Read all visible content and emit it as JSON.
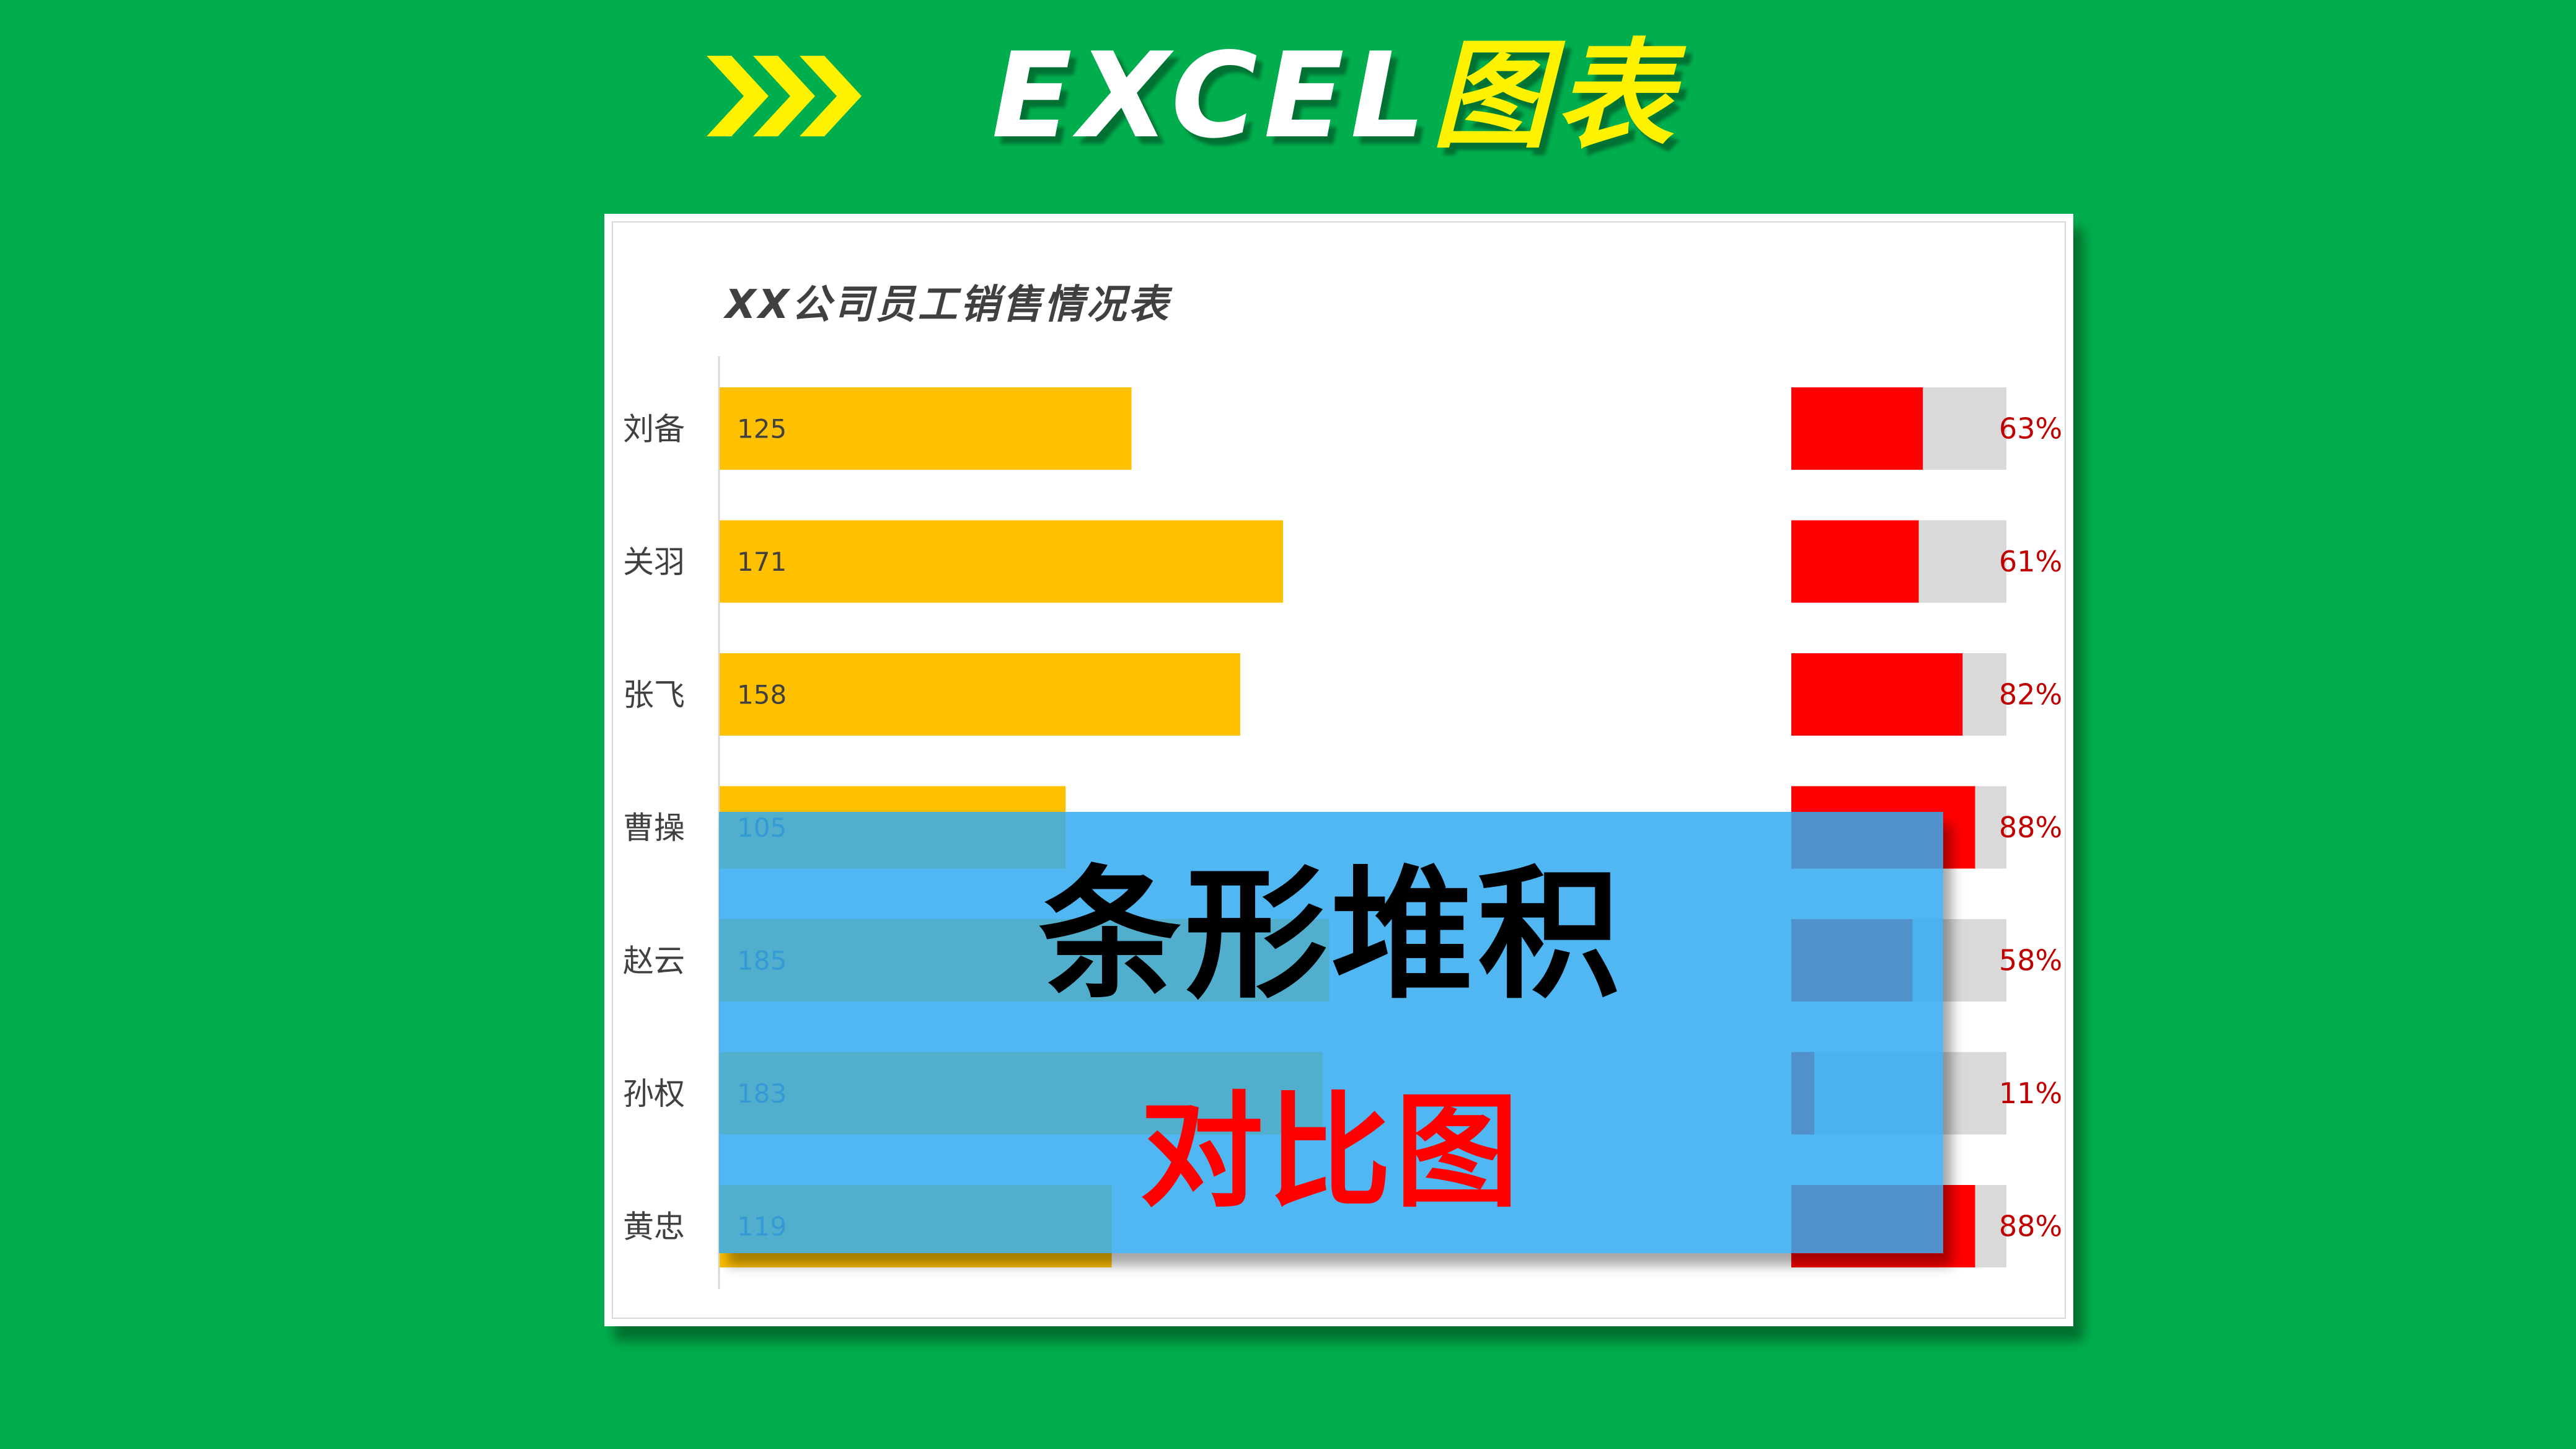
{
  "header": {
    "title_en": "EXCEL",
    "title_cn": "图表",
    "arrow_icon": "triple-chevron-right-icon",
    "colors": {
      "background": "#00AE4E",
      "arrows": "#FFF200",
      "title_en": "#FFFFFF",
      "title_cn": "#FFF200"
    }
  },
  "overlay": {
    "title": "条形堆积",
    "subtitle": "对比图"
  },
  "chart_data": {
    "type": "bar",
    "orientation": "horizontal",
    "title": "XX公司员工销售情况表",
    "categories": [
      "刘备",
      "关羽",
      "张飞",
      "曹操",
      "赵云",
      "孙权",
      "黄忠"
    ],
    "series": [
      {
        "values": [
          125,
          171,
          158,
          105,
          185,
          183,
          119
        ],
        "color": "#FFC000"
      },
      {
        "values": [
          0.63,
          0.61,
          0.82,
          0.88,
          0.58,
          0.11,
          0.88
        ],
        "color": "#FF0000",
        "background_color": "#D9D9D9"
      }
    ],
    "data_labels": {
      "sales": [
        "125",
        "171",
        "158",
        "105",
        "185",
        "183",
        "119"
      ],
      "rates": [
        "63%",
        "61%",
        "82%",
        "88%",
        "58%",
        "11%",
        "88%"
      ]
    },
    "xlim_sales": [
      0,
      250
    ],
    "xlim_rate": [
      0,
      1
    ],
    "grid": false,
    "legend": "none"
  }
}
